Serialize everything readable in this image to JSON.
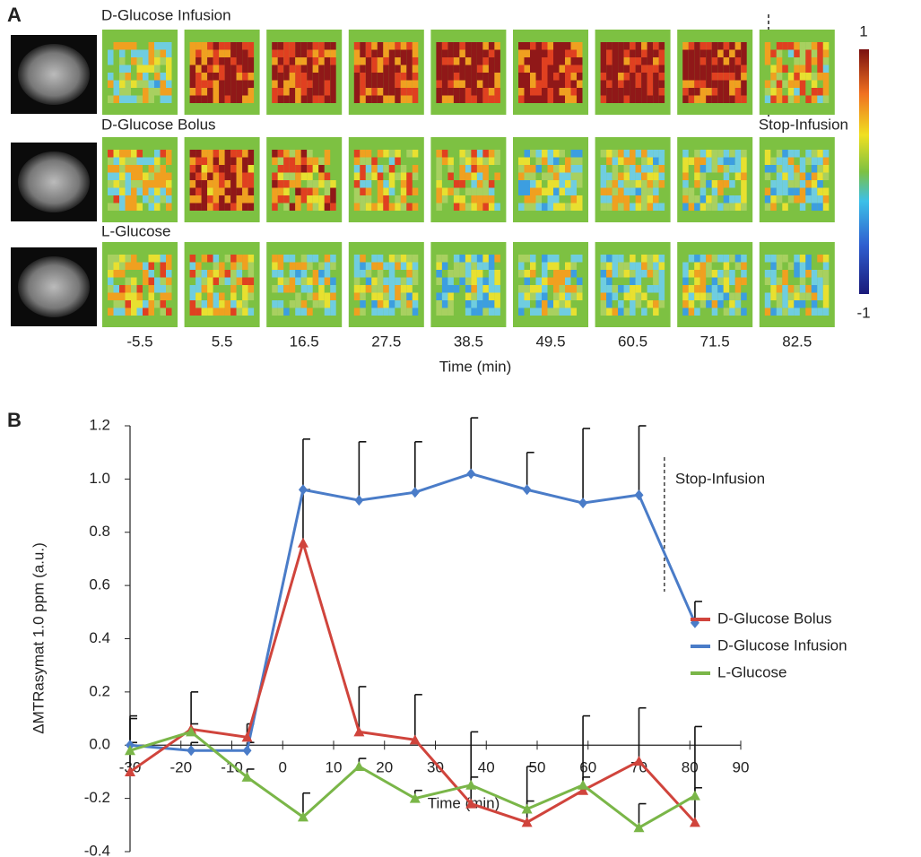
{
  "panel_a": {
    "label": "A",
    "rows": [
      "D-Glucose Infusion",
      "D-Glucose Bolus",
      "L-Glucose"
    ],
    "stop_label": "Stop-Infusion",
    "colorbar": [
      "1",
      "-1"
    ],
    "time_labels": [
      -5.5,
      5.5,
      16.5,
      27.5,
      38.5,
      49.5,
      60.5,
      71.5,
      82.5
    ],
    "xlabel": "Time (min)"
  },
  "chart_data": {
    "type": "line",
    "panel_label": "B",
    "xlabel": "Time (min)",
    "ylabel": "ΔMTRasymat 1.0 ppm (a.u.)",
    "xlim": [
      -30,
      90
    ],
    "ylim": [
      -0.4,
      1.2
    ],
    "xticks": [
      -30,
      -20,
      -10,
      0,
      10,
      20,
      30,
      40,
      50,
      60,
      70,
      80,
      90
    ],
    "yticks": [
      -0.4,
      -0.2,
      {
        "value": 0,
        "label": "0.0"
      },
      0.2,
      0.4,
      0.6,
      0.8,
      {
        "value": 1,
        "label": "1.0"
      },
      1.2
    ],
    "x": [
      -30,
      -18,
      -7,
      4,
      15,
      26,
      37,
      48,
      59,
      70,
      81
    ],
    "series": [
      {
        "name": "D-Glucose Bolus",
        "color": "#d0443c",
        "marker": "triangle",
        "values": [
          -0.1,
          0.06,
          0.03,
          0.76,
          0.05,
          0.02,
          -0.22,
          -0.29,
          -0.17,
          -0.06,
          -0.29
        ],
        "errors": [
          0.2,
          0.14,
          0.05,
          0.2,
          0.17,
          0.17,
          0.27,
          0.21,
          0.28,
          0.2,
          0.36
        ]
      },
      {
        "name": "D-Glucose Infusion",
        "color": "#4a7cc8",
        "marker": "diamond",
        "values": [
          0,
          -0.02,
          -0.02,
          0.96,
          0.92,
          0.95,
          1.02,
          0.96,
          0.91,
          0.94,
          0.46
        ],
        "errors": [
          0.11,
          0.03,
          0.03,
          0.19,
          0.22,
          0.19,
          0.21,
          0.14,
          0.28,
          0.26,
          0.08
        ]
      },
      {
        "name": "L-Glucose",
        "color": "#7ab648",
        "marker": "triangle",
        "values": [
          -0.02,
          0.05,
          -0.12,
          -0.27,
          -0.08,
          -0.2,
          -0.15,
          -0.24,
          -0.15,
          -0.31,
          -0.19
        ],
        "errors": [
          0.03,
          0.03,
          0.03,
          0.09,
          0.03,
          0.03,
          0.03,
          0.03,
          0.03,
          0.09,
          0.03
        ]
      }
    ],
    "annotation": {
      "text": "Stop-Infusion",
      "x": 75
    },
    "legend": "right"
  }
}
